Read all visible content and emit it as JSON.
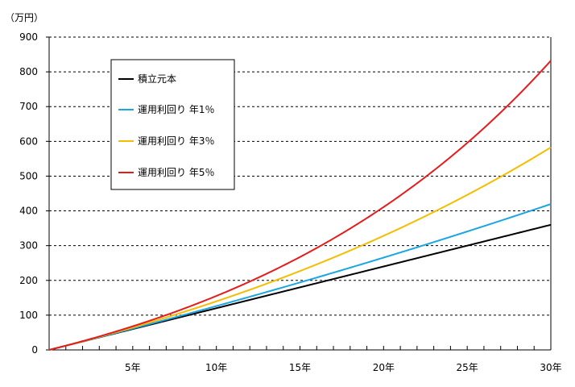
{
  "chart_data": {
    "type": "line",
    "title": "",
    "xlabel": "",
    "ylabel": "",
    "unit_label": "（万円）",
    "xlim": [
      0,
      30
    ],
    "ylim": [
      0,
      900
    ],
    "y_ticks": [
      0,
      100,
      200,
      300,
      400,
      500,
      600,
      700,
      800,
      900
    ],
    "y_tick_labels": [
      "0",
      "100",
      "200",
      "300",
      "400",
      "500",
      "600",
      "700",
      "800",
      "900"
    ],
    "x_ticks": [
      5,
      10,
      15,
      20,
      25,
      30
    ],
    "x_tick_labels": [
      "5年",
      "10年",
      "15年",
      "20年",
      "25年",
      "30年"
    ],
    "x_minor_step": 1,
    "grid": "horizontal-dashed",
    "legend_position": "top-left",
    "monthly_contribution": 1,
    "series": [
      {
        "name": "積立元本",
        "color": "#000000",
        "rate": 0
      },
      {
        "name": "運用利回り 年1％",
        "color": "#1aa6e0",
        "rate": 0.01
      },
      {
        "name": "運用利回り 年3％",
        "color": "#f5bd00",
        "rate": 0.03
      },
      {
        "name": "運用利回り 年5％",
        "color": "#e51c1c",
        "rate": 0.05
      }
    ]
  }
}
